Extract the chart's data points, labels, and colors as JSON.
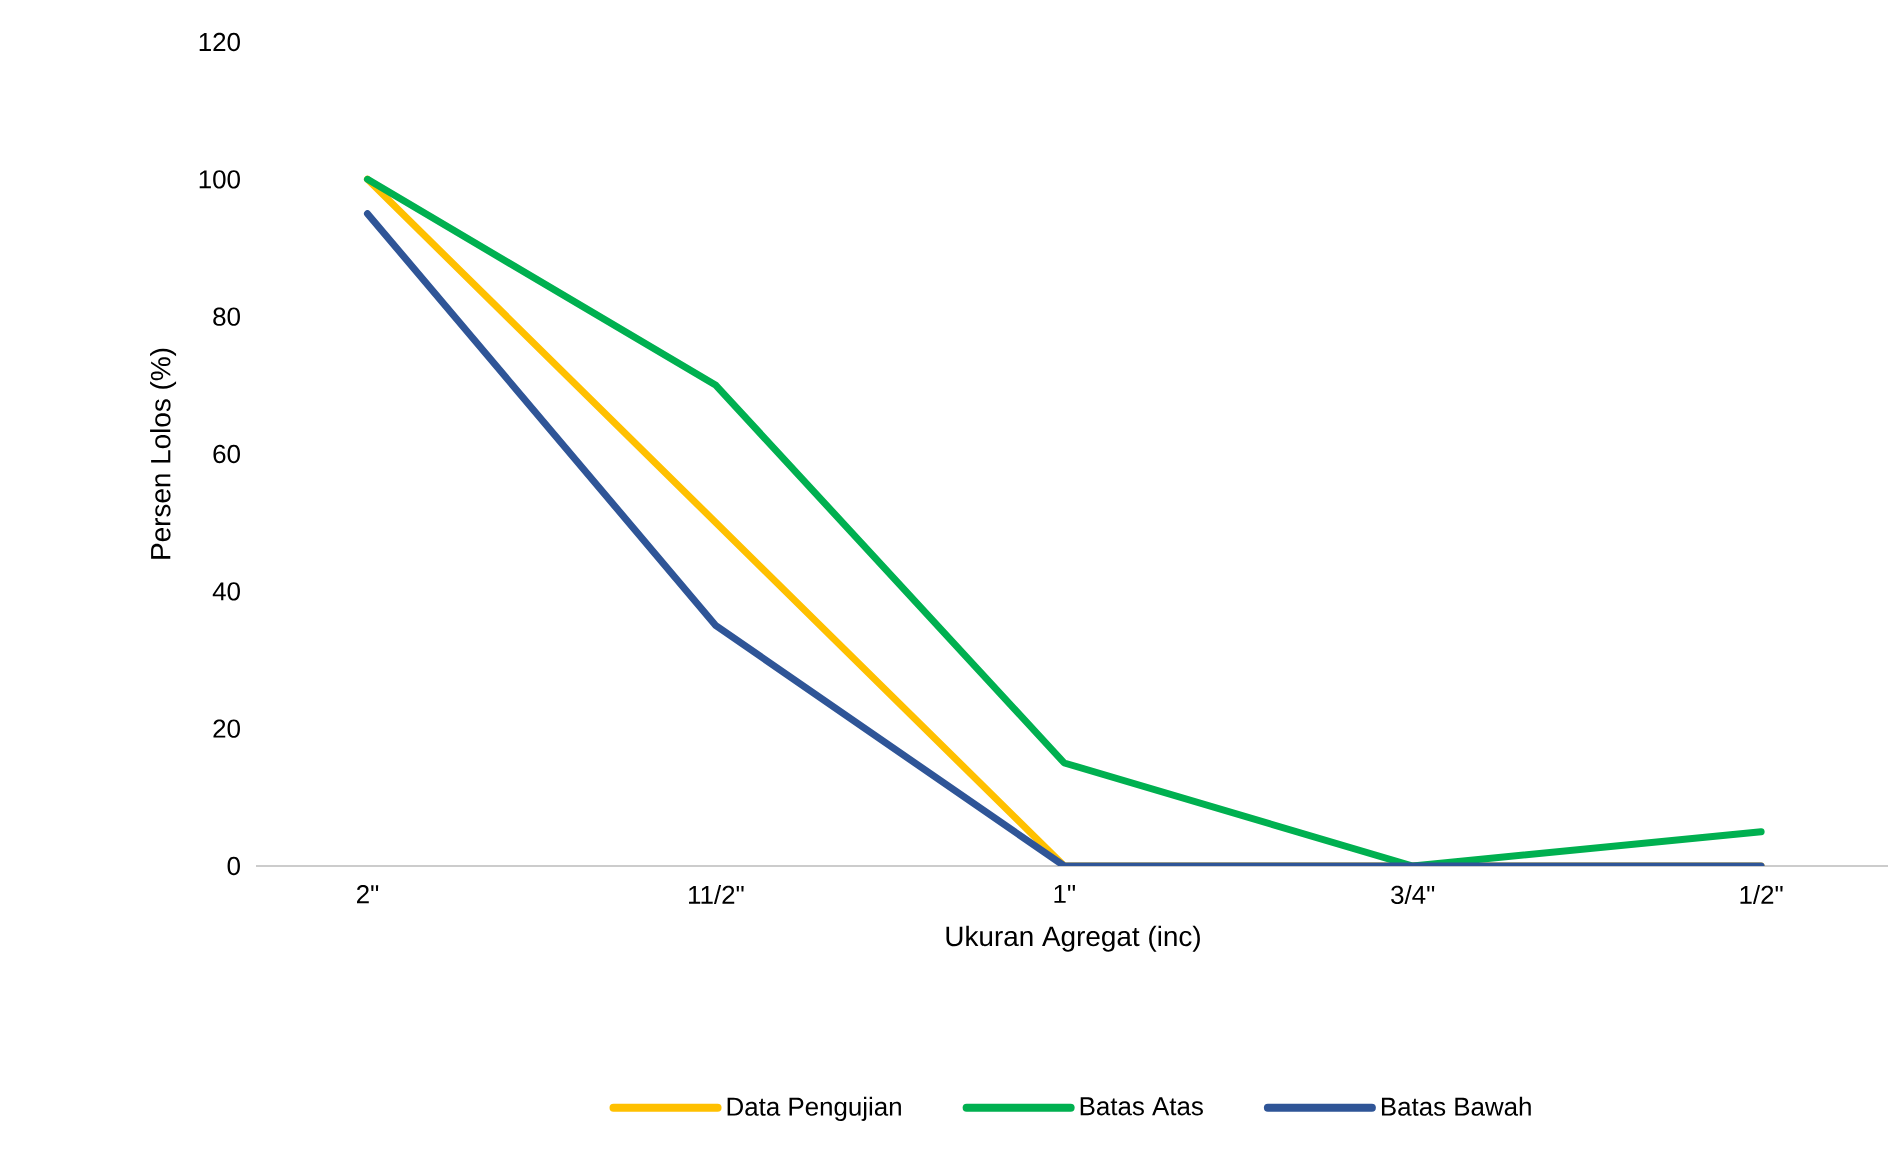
{
  "chart_data": {
    "type": "line",
    "xlabel": "Ukuran Agregat (inc)",
    "ylabel": "Persen Lolos (%)",
    "categories": [
      "2\"",
      "11/2\"",
      "1\"",
      "3/4\"",
      "1/2\""
    ],
    "series": [
      {
        "name": "Data Pengujian",
        "color": "#ffc000",
        "values": [
          100,
          50,
          0,
          0,
          0
        ]
      },
      {
        "name": "Batas Atas",
        "color": "#00b050",
        "values": [
          100,
          70,
          15,
          0,
          5
        ]
      },
      {
        "name": "Batas Bawah",
        "color": "#2f5597",
        "values": [
          95,
          35,
          0,
          0,
          0
        ]
      }
    ],
    "ylim": [
      0,
      120
    ],
    "yticks": [
      0,
      20,
      40,
      60,
      80,
      100,
      120
    ],
    "legend": "bottom",
    "marker": "none",
    "line_style": "solid"
  }
}
